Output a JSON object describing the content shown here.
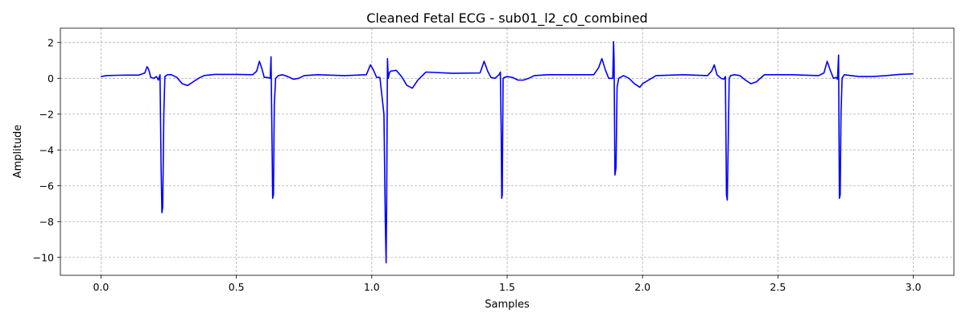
{
  "chart_data": {
    "type": "line",
    "title": "Cleaned Fetal ECG - sub01_l2_c0_combined",
    "xlabel": "Samples",
    "ylabel": "Amplitude",
    "xlim": [
      -0.15,
      3.15
    ],
    "ylim": [
      -11,
      2.8
    ],
    "xticks": [
      0.0,
      0.5,
      1.0,
      1.5,
      2.0,
      2.5,
      3.0
    ],
    "xtick_labels": [
      "0.0",
      "0.5",
      "1.0",
      "1.5",
      "2.0",
      "2.5",
      "3.0"
    ],
    "yticks": [
      2,
      0,
      -2,
      -4,
      -6,
      -8,
      -10
    ],
    "ytick_labels": [
      "2",
      "0",
      "−2",
      "−4",
      "−6",
      "−8",
      "−10"
    ],
    "grid": true,
    "line_color": "#0000ff",
    "series": [
      {
        "x": [
          0.0,
          0.02,
          0.06,
          0.1,
          0.14,
          0.162,
          0.17,
          0.176,
          0.184,
          0.195,
          0.205,
          0.212,
          0.218,
          0.222,
          0.225,
          0.228,
          0.232,
          0.236,
          0.245,
          0.26,
          0.28,
          0.3,
          0.32,
          0.34,
          0.36,
          0.38,
          0.42,
          0.5,
          0.56,
          0.575,
          0.585,
          0.593,
          0.603,
          0.615,
          0.625,
          0.628,
          0.632,
          0.634,
          0.637,
          0.64,
          0.645,
          0.655,
          0.67,
          0.69,
          0.71,
          0.73,
          0.75,
          0.8,
          0.9,
          0.98,
          0.995,
          1.005,
          1.018,
          1.03,
          1.045,
          1.05,
          1.053,
          1.055,
          1.058,
          1.061,
          1.065,
          1.07,
          1.09,
          1.11,
          1.13,
          1.15,
          1.17,
          1.2,
          1.3,
          1.4,
          1.415,
          1.428,
          1.44,
          1.455,
          1.47,
          1.475,
          1.478,
          1.48,
          1.482,
          1.485,
          1.49,
          1.5,
          1.52,
          1.54,
          1.56,
          1.58,
          1.6,
          1.65,
          1.75,
          1.82,
          1.838,
          1.85,
          1.862,
          1.875,
          1.885,
          1.89,
          1.893,
          1.895,
          1.898,
          1.902,
          1.906,
          1.912,
          1.93,
          1.95,
          1.97,
          1.99,
          2.0,
          2.05,
          2.15,
          2.24,
          2.255,
          2.265,
          2.275,
          2.29,
          2.3,
          2.306,
          2.31,
          2.313,
          2.316,
          2.32,
          2.325,
          2.34,
          2.36,
          2.38,
          2.4,
          2.42,
          2.45,
          2.55,
          2.65,
          2.67,
          2.682,
          2.692,
          2.705,
          2.715,
          2.72,
          2.724,
          2.727,
          2.73,
          2.733,
          2.737,
          2.745,
          2.77,
          2.8,
          2.85,
          2.9,
          2.95,
          3.0
        ],
        "y": [
          0.1,
          0.15,
          0.17,
          0.18,
          0.18,
          0.3,
          0.65,
          0.5,
          0.05,
          0.0,
          0.1,
          -0.1,
          0.2,
          -5.0,
          -7.5,
          -7.2,
          -2.0,
          0.1,
          0.2,
          0.2,
          0.05,
          -0.3,
          -0.4,
          -0.2,
          0.0,
          0.15,
          0.22,
          0.22,
          0.2,
          0.4,
          0.95,
          0.6,
          0.05,
          0.05,
          0.0,
          1.2,
          -4.0,
          -6.7,
          -6.5,
          -1.5,
          0.0,
          0.15,
          0.2,
          0.1,
          -0.05,
          0.0,
          0.15,
          0.2,
          0.15,
          0.2,
          0.75,
          0.5,
          0.05,
          0.05,
          -2.0,
          -8.0,
          -10.3,
          -7.0,
          1.1,
          0.0,
          0.3,
          0.4,
          0.45,
          0.1,
          -0.4,
          -0.55,
          -0.1,
          0.35,
          0.28,
          0.3,
          0.95,
          0.4,
          0.05,
          0.0,
          0.2,
          0.35,
          -3.0,
          -6.7,
          -6.5,
          0.0,
          0.05,
          0.1,
          0.05,
          -0.1,
          -0.1,
          0.0,
          0.15,
          0.2,
          0.2,
          0.2,
          0.6,
          1.1,
          0.5,
          0.0,
          0.0,
          0.0,
          2.05,
          1.0,
          -5.4,
          -5.0,
          -0.5,
          0.0,
          0.15,
          0.0,
          -0.3,
          -0.5,
          -0.3,
          0.15,
          0.2,
          0.15,
          0.4,
          0.75,
          0.2,
          0.0,
          -0.05,
          0.1,
          -6.5,
          -6.8,
          -4.0,
          0.0,
          0.15,
          0.2,
          0.15,
          -0.1,
          -0.3,
          -0.2,
          0.2,
          0.2,
          0.15,
          0.3,
          0.95,
          0.5,
          0.0,
          0.05,
          -0.05,
          1.3,
          -6.7,
          -6.5,
          -2.0,
          0.0,
          0.2,
          0.15,
          0.1,
          0.1,
          0.15,
          0.22,
          0.25
        ]
      }
    ]
  }
}
